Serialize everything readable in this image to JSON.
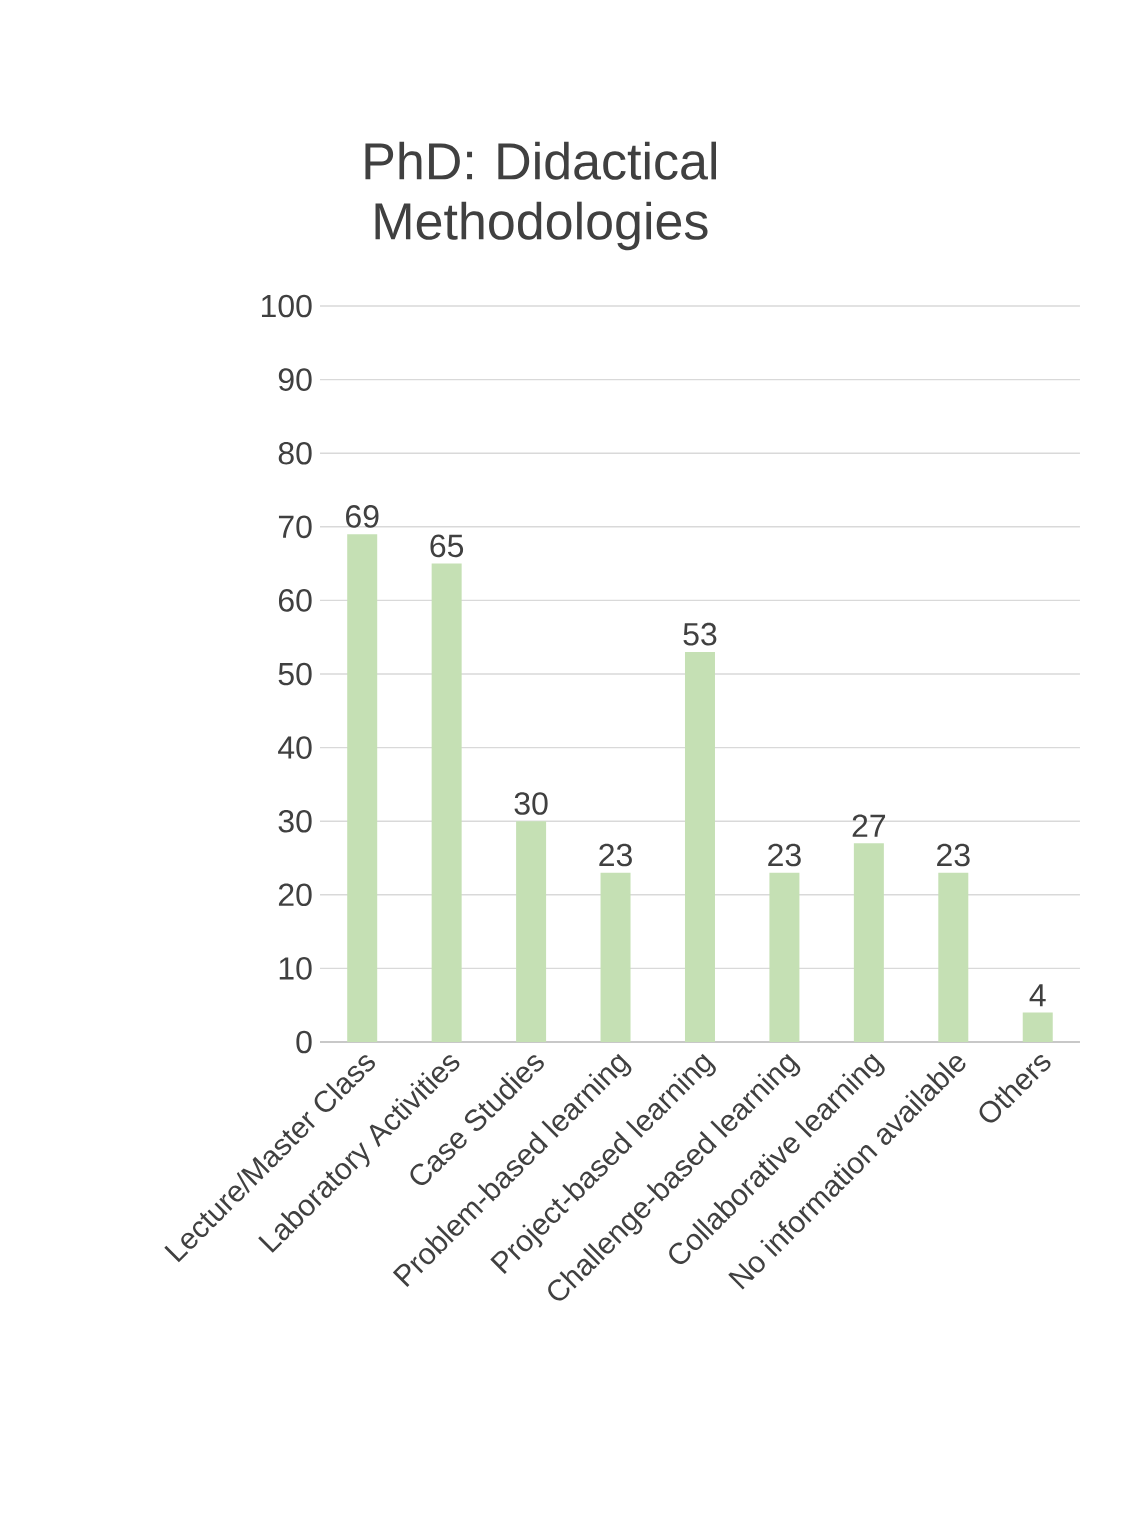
{
  "chart_data": {
    "type": "bar",
    "title": "PhD: Didactical Methodologies",
    "categories": [
      "Lecture/Master Class",
      "Laboratory Activities",
      "Case Studies",
      "Problem-based learning",
      "Project-based learning",
      "Challenge-based learning",
      "Collaborative learning",
      "No information available",
      "Others"
    ],
    "values": [
      69,
      65,
      30,
      23,
      53,
      23,
      27,
      23,
      4
    ],
    "color": "#c5e0b4",
    "ylim": [
      0,
      100
    ],
    "yticks": [
      0,
      10,
      20,
      30,
      40,
      50,
      60,
      70,
      80,
      90,
      100
    ],
    "grid": "y",
    "data_labels": true
  }
}
